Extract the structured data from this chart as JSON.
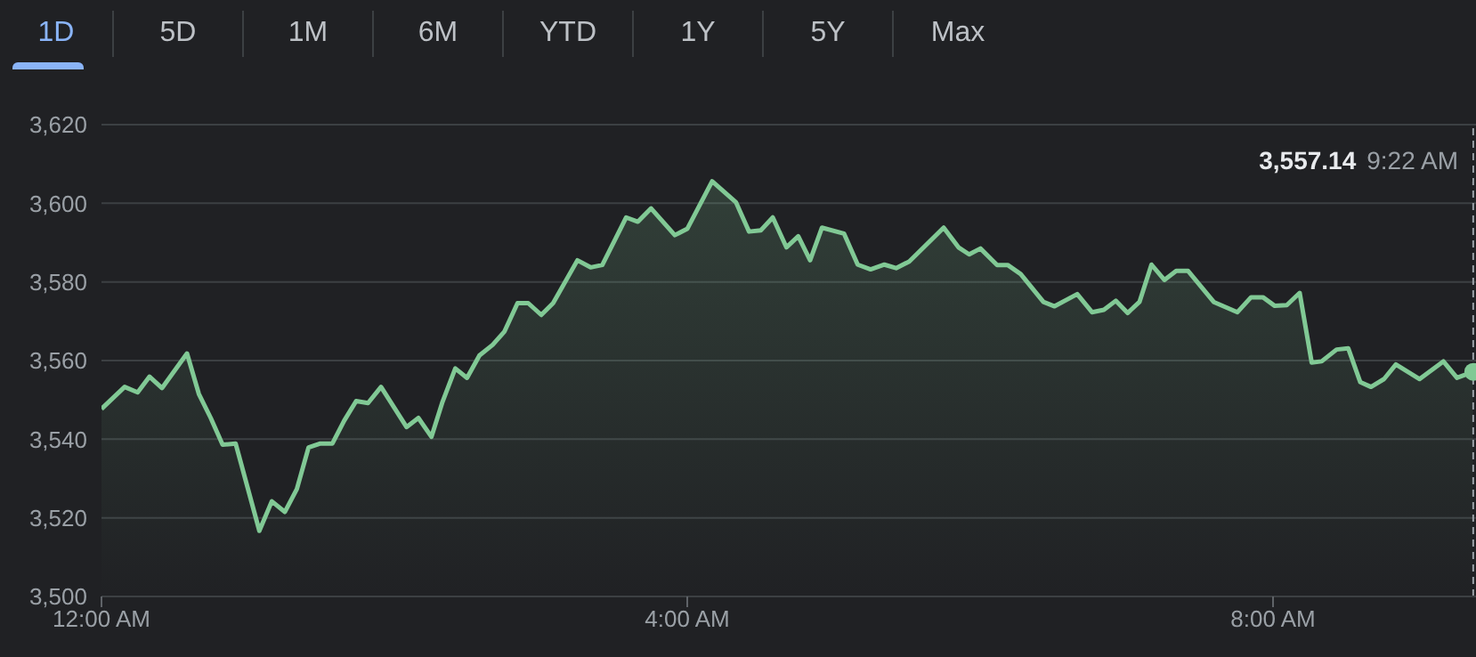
{
  "chart_data": {
    "type": "area",
    "x": [
      0,
      0.158,
      0.247,
      0.328,
      0.413,
      0.584,
      0.665,
      0.746,
      0.827,
      0.916,
      1.078,
      1.163,
      1.252,
      1.334,
      1.414,
      1.495,
      1.577,
      1.657,
      1.739,
      1.82,
      1.909,
      2.083,
      2.164,
      2.253,
      2.326,
      2.416,
      2.496,
      2.581,
      2.671,
      2.752,
      2.841,
      2.914,
      3.003,
      3.084,
      3.25,
      3.34,
      3.42,
      3.583,
      3.663,
      3.753,
      3.915,
      4.0,
      4.17,
      4.332,
      4.422,
      4.502,
      4.584,
      4.677,
      4.758,
      4.839,
      4.92,
      5.07,
      5.164,
      5.252,
      5.346,
      5.426,
      5.516,
      5.751,
      5.852,
      5.925,
      6.002,
      6.116,
      6.188,
      6.277,
      6.432,
      6.508,
      6.663,
      6.764,
      6.845,
      6.926,
      7.007,
      7.088,
      7.17,
      7.258,
      7.339,
      7.42,
      7.595,
      7.757,
      7.85,
      7.931,
      8.012,
      8.094,
      8.182,
      8.264,
      8.332,
      8.434,
      8.514,
      8.596,
      8.669,
      8.758,
      8.839,
      9.001,
      9.163,
      9.256,
      9.367
    ],
    "series": [
      {
        "color": "#81c995",
        "values": [
          3547.7,
          3553.3,
          3551.9,
          3555.9,
          3553,
          3561.8,
          3551.5,
          3545.4,
          3538.6,
          3538.9,
          3516.7,
          3524.2,
          3521.5,
          3527.3,
          3537.9,
          3538.9,
          3538.9,
          3544.7,
          3549.7,
          3549.2,
          3553.3,
          3543.1,
          3545.4,
          3540.6,
          3549.2,
          3558,
          3555.6,
          3561.3,
          3564,
          3567.4,
          3574.6,
          3574.6,
          3571.6,
          3574.6,
          3585.5,
          3583.7,
          3584.3,
          3596.4,
          3595.3,
          3598.7,
          3591.9,
          3593.5,
          3605.6,
          3600.3,
          3592.8,
          3593.1,
          3596.4,
          3588.8,
          3591.6,
          3585.5,
          3593.8,
          3592.3,
          3584.4,
          3583.2,
          3584.4,
          3583.5,
          3585.2,
          3593.8,
          3588.8,
          3587,
          3588.5,
          3584.3,
          3584.3,
          3582,
          3574.9,
          3573.8,
          3576.9,
          3572.3,
          3572.9,
          3575.2,
          3572.1,
          3574.9,
          3584.4,
          3580.5,
          3582.8,
          3582.8,
          3574.9,
          3572.3,
          3576.1,
          3576.1,
          3573.9,
          3574.1,
          3577.2,
          3559.5,
          3559.8,
          3562.8,
          3563.1,
          3554.5,
          3553.3,
          3555.3,
          3559,
          3555.3,
          3559.8,
          3555.6,
          3557.14
        ]
      }
    ],
    "xlim": [
      0,
      9.386
    ],
    "xticks": [
      {
        "value": 0,
        "label": "12:00 AM"
      },
      {
        "value": 4,
        "label": "4:00 AM"
      },
      {
        "value": 8,
        "label": "8:00 AM"
      }
    ],
    "ylim": [
      3500,
      3620
    ],
    "yticks": [
      {
        "value": 3500,
        "label": "3,500"
      },
      {
        "value": 3520,
        "label": "3,520"
      },
      {
        "value": 3540,
        "label": "3,540"
      },
      {
        "value": 3560,
        "label": "3,560"
      },
      {
        "value": 3580,
        "label": "3,580"
      },
      {
        "value": 3600,
        "label": "3,600"
      },
      {
        "value": 3620,
        "label": "3,620"
      }
    ],
    "grid": "y",
    "marker": "none",
    "ref_lines": [
      {
        "axis": "x",
        "value": 9.367,
        "color": "#9aa0a6",
        "line_style": "dashed"
      }
    ],
    "annotations": [
      "3,557.14 9:22 AM",
      "1D",
      "5D",
      "1M",
      "6M",
      "YTD",
      "1Y",
      "5Y",
      "Max"
    ]
  }
}
